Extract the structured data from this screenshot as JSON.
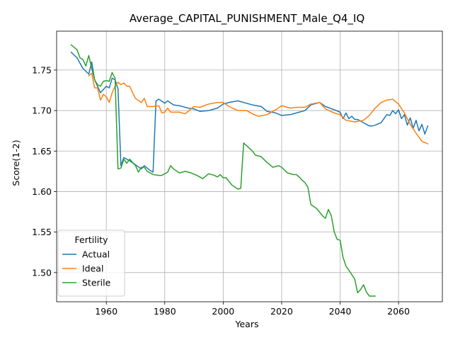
{
  "chart_data": {
    "type": "line",
    "title": "Average_CAPITAL_PUNISHMENT_Male_Q4_IQ",
    "xlabel": "Years",
    "ylabel": "Score(1-2)",
    "xlim": [
      1943,
      2075
    ],
    "ylim": [
      1.464,
      1.798
    ],
    "xticks": [
      1960,
      1980,
      2000,
      2020,
      2040,
      2060
    ],
    "yticks": [
      1.5,
      1.55,
      1.6,
      1.65,
      1.7,
      1.75
    ],
    "ytick_labels": [
      "1.50",
      "1.55",
      "1.60",
      "1.65",
      "1.70",
      "1.75"
    ],
    "grid": true,
    "legend": {
      "title": "Fertility",
      "position": "lower-left"
    },
    "series": [
      {
        "name": "Actual",
        "color": "#1f77b4",
        "x": [
          1948,
          1950,
          1952,
          1954,
          1955,
          1956,
          1958,
          1960,
          1961,
          1962,
          1963,
          1964,
          1965,
          1966,
          1968,
          1970,
          1972,
          1973,
          1975,
          1976,
          1977,
          1978,
          1980,
          1981,
          1983,
          1985,
          1988,
          1990,
          1992,
          1995,
          1998,
          2000,
          2002,
          2005,
          2008,
          2010,
          2013,
          2015,
          2018,
          2020,
          2023,
          2025,
          2028,
          2030,
          2033,
          2035,
          2038,
          2040,
          2041,
          2042,
          2043,
          2044,
          2045,
          2046,
          2048,
          2050,
          2051,
          2052,
          2054,
          2055,
          2056,
          2057,
          2058,
          2059,
          2060,
          2061,
          2062,
          2063,
          2064,
          2065,
          2066,
          2067,
          2068,
          2069,
          2070
        ],
        "y": [
          1.772,
          1.765,
          1.752,
          1.745,
          1.76,
          1.738,
          1.722,
          1.73,
          1.728,
          1.74,
          1.738,
          1.727,
          1.632,
          1.642,
          1.638,
          1.633,
          1.628,
          1.632,
          1.626,
          1.624,
          1.712,
          1.714,
          1.709,
          1.712,
          1.707,
          1.706,
          1.703,
          1.702,
          1.699,
          1.7,
          1.703,
          1.708,
          1.71,
          1.712,
          1.709,
          1.707,
          1.705,
          1.699,
          1.697,
          1.694,
          1.695,
          1.697,
          1.7,
          1.707,
          1.71,
          1.705,
          1.701,
          1.698,
          1.69,
          1.697,
          1.69,
          1.693,
          1.689,
          1.689,
          1.685,
          1.681,
          1.681,
          1.682,
          1.685,
          1.69,
          1.695,
          1.694,
          1.7,
          1.696,
          1.701,
          1.69,
          1.695,
          1.682,
          1.691,
          1.678,
          1.688,
          1.675,
          1.683,
          1.671,
          1.681
        ]
      },
      {
        "name": "Ideal",
        "color": "#ff7f0e",
        "x": [
          1954,
          1955,
          1956,
          1957,
          1958,
          1959,
          1960,
          1961,
          1962,
          1963,
          1964,
          1965,
          1966,
          1967,
          1968,
          1969,
          1970,
          1972,
          1973,
          1974,
          1976,
          1978,
          1979,
          1980,
          1981,
          1982,
          1985,
          1987,
          1990,
          1992,
          1995,
          1998,
          2000,
          2002,
          2005,
          2008,
          2010,
          2012,
          2015,
          2018,
          2020,
          2023,
          2025,
          2028,
          2030,
          2033,
          2035,
          2038,
          2040,
          2042,
          2045,
          2048,
          2050,
          2052,
          2054,
          2056,
          2058,
          2060,
          2062,
          2064,
          2066,
          2068,
          2070
        ],
        "y": [
          1.743,
          1.746,
          1.728,
          1.728,
          1.713,
          1.72,
          1.717,
          1.71,
          1.722,
          1.73,
          1.735,
          1.732,
          1.734,
          1.73,
          1.73,
          1.722,
          1.715,
          1.71,
          1.715,
          1.705,
          1.705,
          1.706,
          1.697,
          1.698,
          1.703,
          1.698,
          1.698,
          1.696,
          1.705,
          1.704,
          1.708,
          1.71,
          1.71,
          1.705,
          1.7,
          1.7,
          1.696,
          1.693,
          1.695,
          1.701,
          1.706,
          1.703,
          1.704,
          1.704,
          1.708,
          1.71,
          1.702,
          1.697,
          1.695,
          1.688,
          1.686,
          1.688,
          1.694,
          1.703,
          1.71,
          1.713,
          1.714,
          1.708,
          1.697,
          1.683,
          1.672,
          1.662,
          1.659
        ]
      },
      {
        "name": "Sterile",
        "color": "#2ca02c",
        "x": [
          1948,
          1950,
          1951,
          1952,
          1953,
          1954,
          1955,
          1956,
          1957,
          1958,
          1959,
          1960,
          1961,
          1962,
          1963,
          1964,
          1965,
          1966,
          1967,
          1968,
          1969,
          1970,
          1971,
          1972,
          1973,
          1974,
          1976,
          1978,
          1979,
          1980,
          1981,
          1982,
          1983,
          1985,
          1987,
          1989,
          1991,
          1993,
          1995,
          1997,
          1998,
          1999,
          2000,
          2001,
          2003,
          2005,
          2006,
          2007,
          2010,
          2011,
          2013,
          2015,
          2017,
          2019,
          2020,
          2022,
          2024,
          2025,
          2026,
          2027,
          2028,
          2029,
          2030,
          2032,
          2034,
          2035,
          2036,
          2037,
          2038,
          2039,
          2040,
          2041,
          2042,
          2043,
          2045,
          2046,
          2047,
          2048,
          2049,
          2050,
          2052
        ],
        "y": [
          1.781,
          1.775,
          1.765,
          1.763,
          1.755,
          1.768,
          1.752,
          1.738,
          1.732,
          1.73,
          1.736,
          1.737,
          1.736,
          1.747,
          1.74,
          1.628,
          1.629,
          1.64,
          1.635,
          1.64,
          1.636,
          1.632,
          1.624,
          1.63,
          1.63,
          1.625,
          1.621,
          1.62,
          1.62,
          1.622,
          1.624,
          1.632,
          1.628,
          1.623,
          1.625,
          1.623,
          1.62,
          1.616,
          1.622,
          1.62,
          1.618,
          1.621,
          1.617,
          1.617,
          1.608,
          1.603,
          1.604,
          1.66,
          1.65,
          1.645,
          1.643,
          1.636,
          1.63,
          1.632,
          1.63,
          1.623,
          1.621,
          1.621,
          1.618,
          1.614,
          1.611,
          1.605,
          1.584,
          1.579,
          1.57,
          1.567,
          1.578,
          1.57,
          1.55,
          1.541,
          1.54,
          1.519,
          1.508,
          1.503,
          1.492,
          1.475,
          1.479,
          1.485,
          1.476,
          1.471,
          1.471
        ]
      }
    ]
  }
}
